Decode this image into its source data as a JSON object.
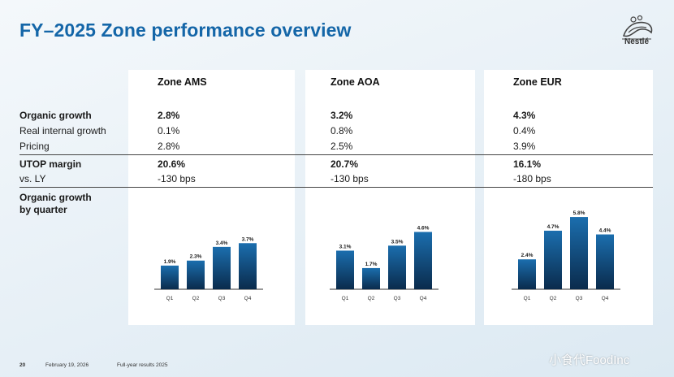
{
  "title": "FY–2025 Zone performance overview",
  "logo": {
    "icon": "nestle-nest-logo",
    "text": "Nestlé"
  },
  "row_labels": {
    "organic_growth": "Organic growth",
    "rig": "Real internal growth",
    "pricing": "Pricing",
    "utop": "UTOP margin",
    "vs_ly": "vs. LY",
    "og_by_quarter": [
      "Organic growth",
      "by quarter"
    ]
  },
  "zones": [
    {
      "name": "Zone AMS",
      "organic_growth": "2.8%",
      "rig": "0.1%",
      "pricing": "2.8%",
      "utop": "20.6%",
      "vs_ly": "-130 bps"
    },
    {
      "name": "Zone AOA",
      "organic_growth": "3.2%",
      "rig": "0.8%",
      "pricing": "2.5%",
      "utop": "20.7%",
      "vs_ly": "-130 bps"
    },
    {
      "name": "Zone EUR",
      "organic_growth": "4.3%",
      "rig": "0.4%",
      "pricing": "3.9%",
      "utop": "16.1%",
      "vs_ly": "-180 bps"
    }
  ],
  "chart_data": [
    {
      "type": "bar",
      "title": "",
      "categories": [
        "Q1",
        "Q2",
        "Q3",
        "Q4"
      ],
      "values": [
        1.9,
        2.3,
        3.4,
        3.7
      ],
      "labels": [
        "1.9%",
        "2.3%",
        "3.4%",
        "3.7%"
      ],
      "ylim": [
        0,
        6.0
      ],
      "grid": false
    },
    {
      "type": "bar",
      "title": "",
      "categories": [
        "Q1",
        "Q2",
        "Q3",
        "Q4"
      ],
      "values": [
        3.1,
        1.7,
        3.5,
        4.6
      ],
      "labels": [
        "3.1%",
        "1.7%",
        "3.5%",
        "4.6%"
      ],
      "ylim": [
        0,
        6.0
      ],
      "grid": false
    },
    {
      "type": "bar",
      "title": "",
      "categories": [
        "Q1",
        "Q2",
        "Q3",
        "Q4"
      ],
      "values": [
        2.4,
        4.7,
        5.8,
        4.4
      ],
      "labels": [
        "2.4%",
        "4.7%",
        "5.8%",
        "4.4%"
      ],
      "ylim": [
        0,
        6.0
      ],
      "grid": false
    }
  ],
  "colors": {
    "title": "#1466a8",
    "bar_top": "#1b6eae",
    "bar_bottom": "#0a2b4c"
  },
  "footer": {
    "page": "20",
    "date": "February 19, 2026",
    "doc": "Full-year results 2025"
  },
  "watermark": "小食代FoodInc"
}
